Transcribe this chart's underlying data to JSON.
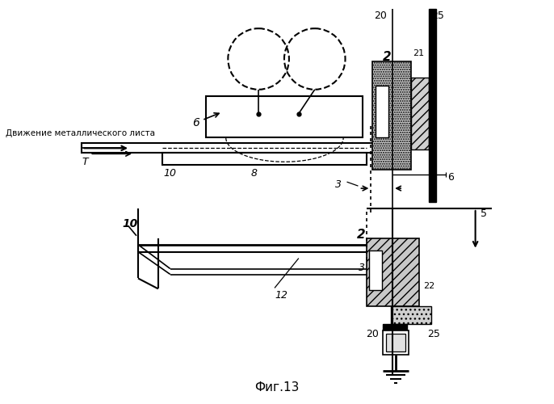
{
  "title": "Фиг.13",
  "bg_color": "#ffffff",
  "line_color": "#000000",
  "fig_width": 6.86,
  "fig_height": 5.0,
  "dpi": 100
}
